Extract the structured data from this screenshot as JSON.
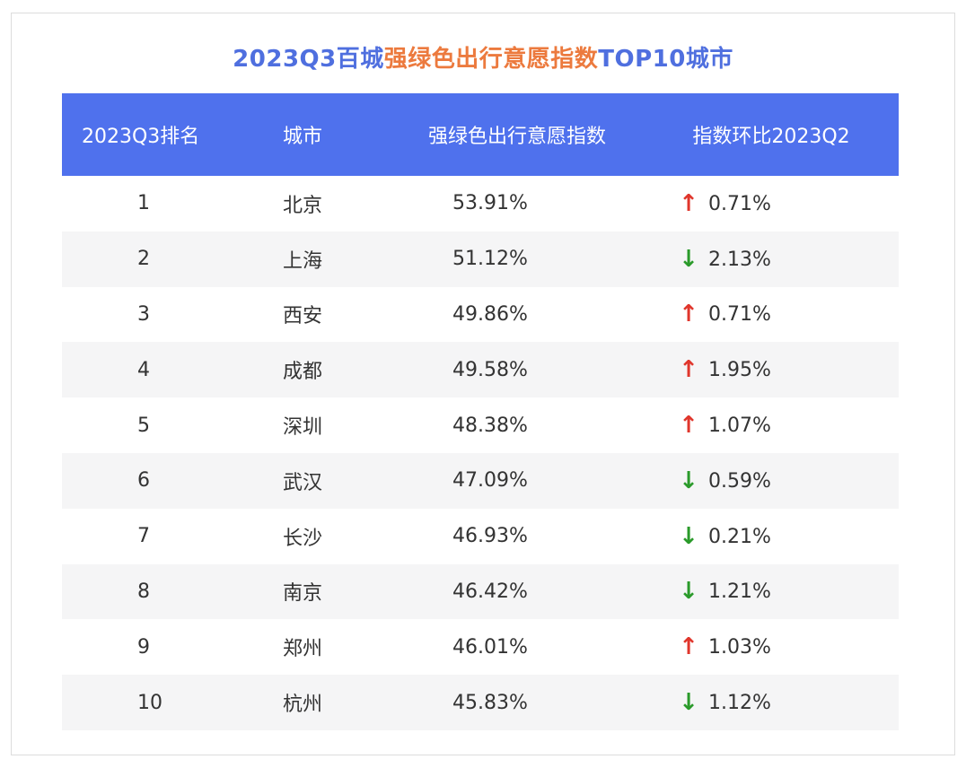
{
  "title": {
    "part1": "2023Q3百城",
    "part2": "强绿色出行意愿指数",
    "part3": "TOP10城市"
  },
  "colors": {
    "header_bg": "#4f71ed",
    "title_blue": "#4f6fdf",
    "title_orange": "#ec7a3e",
    "up": "#e0362c",
    "down": "#2a9a2a"
  },
  "table": {
    "headers": [
      "2023Q3排名",
      "城市",
      "强绿色出行意愿指数",
      "指数环比2023Q2"
    ],
    "rows": [
      {
        "rank": "1",
        "city": "北京",
        "index": "53.91%",
        "dir": "up",
        "arrow": "↑",
        "change": "0.71%"
      },
      {
        "rank": "2",
        "city": "上海",
        "index": "51.12%",
        "dir": "down",
        "arrow": "↓",
        "change": "2.13%"
      },
      {
        "rank": "3",
        "city": "西安",
        "index": "49.86%",
        "dir": "up",
        "arrow": "↑",
        "change": "0.71%"
      },
      {
        "rank": "4",
        "city": "成都",
        "index": "49.58%",
        "dir": "up",
        "arrow": "↑",
        "change": "1.95%"
      },
      {
        "rank": "5",
        "city": "深圳",
        "index": "48.38%",
        "dir": "up",
        "arrow": "↑",
        "change": "1.07%"
      },
      {
        "rank": "6",
        "city": "武汉",
        "index": "47.09%",
        "dir": "down",
        "arrow": "↓",
        "change": "0.59%"
      },
      {
        "rank": "7",
        "city": "长沙",
        "index": "46.93%",
        "dir": "down",
        "arrow": "↓",
        "change": "0.21%"
      },
      {
        "rank": "8",
        "city": "南京",
        "index": "46.42%",
        "dir": "down",
        "arrow": "↓",
        "change": "1.21%"
      },
      {
        "rank": "9",
        "city": "郑州",
        "index": "46.01%",
        "dir": "up",
        "arrow": "↑",
        "change": "1.03%"
      },
      {
        "rank": "10",
        "city": "杭州",
        "index": "45.83%",
        "dir": "down",
        "arrow": "↓",
        "change": "1.12%"
      }
    ]
  }
}
